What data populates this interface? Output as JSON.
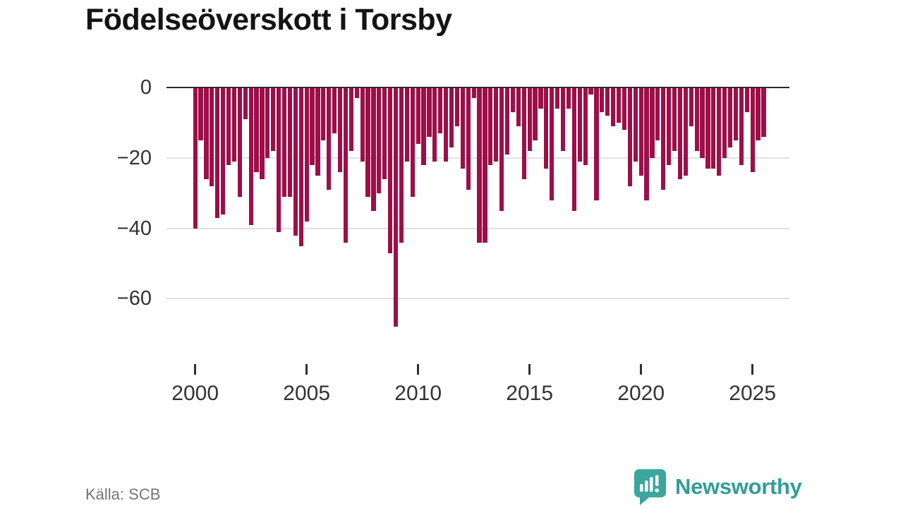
{
  "title": "Födelseöverskott i Torsby",
  "source": "Källa: SCB",
  "brand": {
    "name": "Newsworthy",
    "icon": "bar-chart-speech-bubble-icon"
  },
  "colors": {
    "bar": "#9e0e48",
    "axis": "#2b2b2b",
    "grid": "#e1e1e1",
    "tick_label": "#333333",
    "source_text": "#757575",
    "title_text": "#141414",
    "brand_teal": "#2f9e96",
    "background": "#ffffff"
  },
  "chart_data": {
    "type": "bar",
    "title": "Födelseöverskott i Torsby",
    "xlabel": "",
    "ylabel": "",
    "frequency": "quarterly",
    "start_year": 2000,
    "start_quarter": 1,
    "end_year": 2025,
    "end_quarter": 3,
    "ylim": [
      -70,
      0
    ],
    "y_ticks": [
      0,
      -20,
      -40,
      -60
    ],
    "y_tick_labels": [
      "0",
      "−20",
      "−40",
      "−60"
    ],
    "x_tick_years": [
      2000,
      2005,
      2010,
      2015,
      2020,
      2025
    ],
    "x_tick_labels": [
      "2000",
      "2005",
      "2010",
      "2015",
      "2020",
      "2025"
    ],
    "grid": "horizontal",
    "legend": "none",
    "series": [
      {
        "name": "Födelseöverskott",
        "values": [
          -40,
          -15,
          -26,
          -28,
          -37,
          -36,
          -22,
          -21,
          -31,
          -9,
          -39,
          -24,
          -26,
          -20,
          -18,
          -41,
          -31,
          -31,
          -42,
          -45,
          -38,
          -22,
          -25,
          -15,
          -29,
          -13,
          -24,
          -44,
          -18,
          -3,
          -21,
          -31,
          -35,
          -30,
          -26,
          -47,
          -68,
          -44,
          -21,
          -31,
          -16,
          -22,
          -14,
          -21,
          -13,
          -21,
          -17,
          -11,
          -23,
          -29,
          -3,
          -44,
          -44,
          -22,
          -21,
          -35,
          -19,
          -7,
          -11,
          -26,
          -18,
          -15,
          -6,
          -23,
          -32,
          -6,
          -18,
          -6,
          -35,
          -21,
          -22,
          -2,
          -32,
          -7,
          -8,
          -11,
          -10,
          -12,
          -28,
          -21,
          -25,
          -32,
          -20,
          -15,
          -29,
          -22,
          -18,
          -26,
          -25,
          -11,
          -18,
          -20,
          -23,
          -23,
          -25,
          -20,
          -17,
          -15,
          -22,
          -7,
          -24,
          -15,
          -14
        ]
      }
    ]
  }
}
